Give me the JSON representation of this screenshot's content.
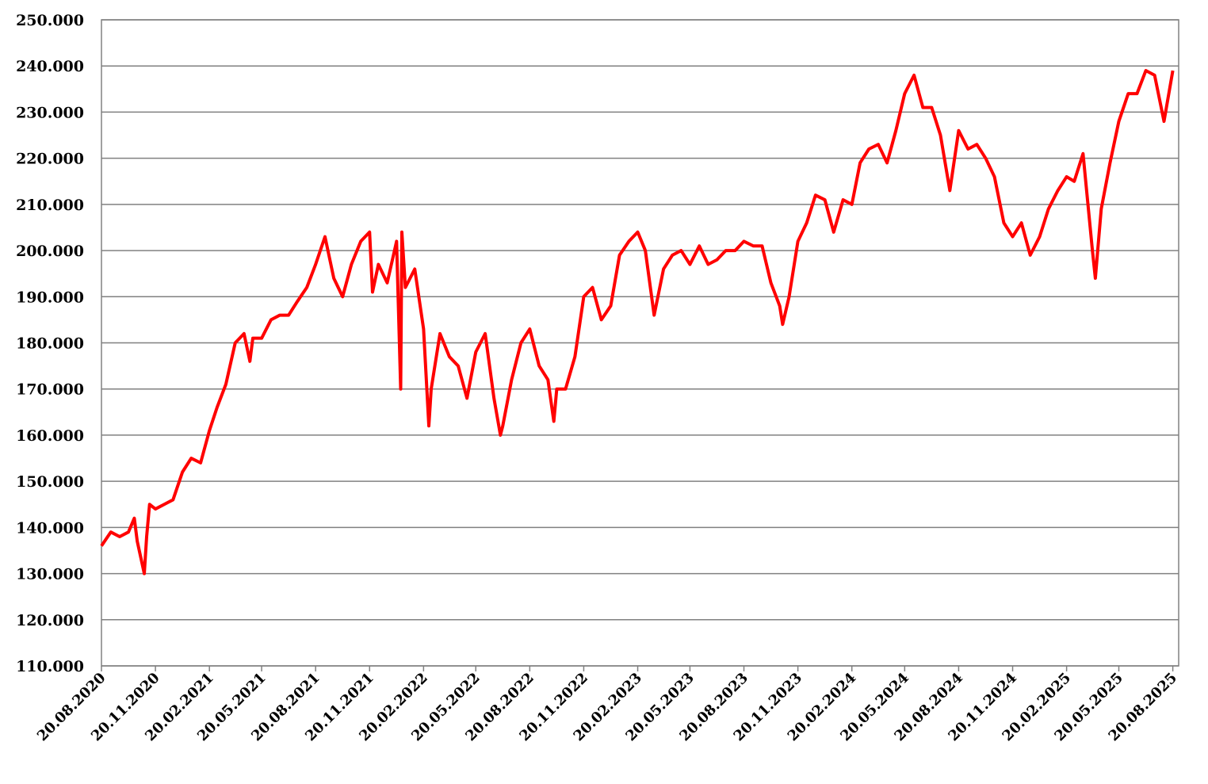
{
  "chart_data": {
    "type": "line",
    "xlim": [
      "20.08.2020",
      "30.08.2025"
    ],
    "xticks": [
      "20.08.2020",
      "20.11.2020",
      "20.02.2021",
      "20.05.2021",
      "20.08.2021",
      "20.11.2021",
      "20.02.2022",
      "20.05.2022",
      "20.08.2022",
      "20.11.2022",
      "20.02.2023",
      "20.05.2023",
      "20.08.2023",
      "20.11.2023",
      "20.02.2024",
      "20.05.2024",
      "20.08.2024",
      "20.11.2024",
      "20.02.2025",
      "20.05.2025",
      "20.08.2025"
    ],
    "ylim": [
      110000,
      250000
    ],
    "yticks": [
      {
        "value": 110000,
        "label": "110.000"
      },
      {
        "value": 120000,
        "label": "120.000"
      },
      {
        "value": 130000,
        "label": "130.000"
      },
      {
        "value": 140000,
        "label": "140.000"
      },
      {
        "value": 150000,
        "label": "150.000"
      },
      {
        "value": 160000,
        "label": "160.000"
      },
      {
        "value": 170000,
        "label": "170.000"
      },
      {
        "value": 180000,
        "label": "180.000"
      },
      {
        "value": 190000,
        "label": "190.000"
      },
      {
        "value": 200000,
        "label": "200.000"
      },
      {
        "value": 210000,
        "label": "210.000"
      },
      {
        "value": 220000,
        "label": "220.000"
      },
      {
        "value": 230000,
        "label": "230.000"
      },
      {
        "value": 240000,
        "label": "240.000"
      },
      {
        "value": 250000,
        "label": "250.000"
      }
    ],
    "grid": true,
    "series": [
      {
        "color": "#ff0000",
        "x": [
          "20.08.2020",
          "05.09.2020",
          "20.09.2020",
          "05.10.2020",
          "15.10.2020",
          "20.10.2020",
          "01.11.2020",
          "05.11.2020",
          "10.11.2020",
          "20.11.2020",
          "05.12.2020",
          "20.12.2020",
          "05.01.2021",
          "20.01.2021",
          "05.02.2021",
          "20.02.2021",
          "05.03.2021",
          "20.03.2021",
          "05.04.2021",
          "20.04.2021",
          "30.04.2021",
          "05.05.2021",
          "20.05.2021",
          "05.06.2021",
          "20.06.2021",
          "05.07.2021",
          "20.07.2021",
          "05.08.2021",
          "20.08.2021",
          "05.09.2021",
          "20.09.2021",
          "05.10.2021",
          "20.10.2021",
          "05.11.2021",
          "20.11.2021",
          "25.11.2021",
          "05.12.2021",
          "20.12.2021",
          "05.01.2022",
          "12.01.2022",
          "14.01.2022",
          "20.01.2022",
          "05.02.2022",
          "20.02.2022",
          "01.03.2022",
          "05.03.2022",
          "20.03.2022",
          "05.04.2022",
          "20.04.2022",
          "05.05.2022",
          "20.05.2022",
          "05.06.2022",
          "20.06.2022",
          "01.07.2022",
          "05.07.2022",
          "20.07.2022",
          "05.08.2022",
          "20.08.2022",
          "05.09.2022",
          "20.09.2022",
          "30.09.2022",
          "05.10.2022",
          "20.10.2022",
          "05.11.2022",
          "20.11.2022",
          "05.12.2022",
          "20.12.2022",
          "05.01.2023",
          "20.01.2023",
          "05.02.2023",
          "20.02.2023",
          "05.03.2023",
          "20.03.2023",
          "05.04.2023",
          "20.04.2023",
          "05.05.2023",
          "20.05.2023",
          "05.06.2023",
          "20.06.2023",
          "05.07.2023",
          "20.07.2023",
          "05.08.2023",
          "20.08.2023",
          "05.09.2023",
          "20.09.2023",
          "05.10.2023",
          "20.10.2023",
          "25.10.2023",
          "05.11.2023",
          "20.11.2023",
          "05.12.2023",
          "20.12.2023",
          "05.01.2024",
          "20.01.2024",
          "05.02.2024",
          "20.02.2024",
          "05.03.2024",
          "20.03.2024",
          "05.04.2024",
          "20.04.2024",
          "05.05.2024",
          "20.05.2024",
          "05.06.2024",
          "20.06.2024",
          "05.07.2024",
          "20.07.2024",
          "05.08.2024",
          "20.08.2024",
          "05.09.2024",
          "20.09.2024",
          "05.10.2024",
          "20.10.2024",
          "05.11.2024",
          "20.11.2024",
          "05.12.2024",
          "20.12.2024",
          "05.01.2025",
          "20.01.2025",
          "05.02.2025",
          "20.02.2025",
          "05.03.2025",
          "20.03.2025",
          "05.04.2025",
          "10.04.2025",
          "20.04.2025",
          "05.05.2025",
          "20.05.2025",
          "05.06.2025",
          "20.06.2025",
          "05.07.2025",
          "20.07.2025",
          "05.08.2025",
          "20.08.2025"
        ],
        "values": [
          136000,
          139000,
          138000,
          139000,
          142000,
          137000,
          130000,
          138000,
          145000,
          144000,
          145000,
          146000,
          152000,
          155000,
          154000,
          161000,
          166000,
          171000,
          180000,
          182000,
          176000,
          181000,
          181000,
          185000,
          186000,
          186000,
          189000,
          192000,
          197000,
          203000,
          194000,
          190000,
          197000,
          202000,
          204000,
          191000,
          197000,
          193000,
          202000,
          170000,
          204000,
          192000,
          196000,
          183000,
          162000,
          170000,
          182000,
          177000,
          175000,
          168000,
          178000,
          182000,
          168000,
          160000,
          162000,
          172000,
          180000,
          183000,
          175000,
          172000,
          163000,
          170000,
          170000,
          177000,
          190000,
          192000,
          185000,
          188000,
          199000,
          202000,
          204000,
          200000,
          186000,
          196000,
          199000,
          200000,
          197000,
          201000,
          197000,
          198000,
          200000,
          200000,
          202000,
          201000,
          201000,
          193000,
          188000,
          184000,
          190000,
          202000,
          206000,
          212000,
          211000,
          204000,
          211000,
          210000,
          219000,
          222000,
          223000,
          219000,
          226000,
          234000,
          238000,
          231000,
          231000,
          225000,
          213000,
          226000,
          222000,
          223000,
          220000,
          216000,
          206000,
          203000,
          206000,
          199000,
          203000,
          209000,
          213000,
          216000,
          215000,
          221000,
          200000,
          194000,
          209000,
          219000,
          228000,
          234000,
          234000,
          239000,
          238000,
          228000,
          239000
        ]
      }
    ]
  }
}
